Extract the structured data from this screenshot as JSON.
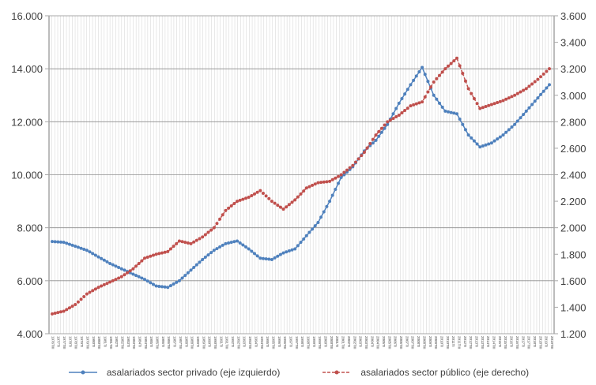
{
  "chart_data": {
    "type": "line",
    "title": "",
    "xlabel": "",
    "ylabel": "",
    "x_label_note": "Quarterly tick labels (rotated, illegible at this resolution); annual samples shown",
    "x": [
      1976,
      1977,
      1978,
      1979,
      1980,
      1981,
      1982,
      1983,
      1984,
      1985,
      1986,
      1987,
      1988,
      1989,
      1990,
      1991,
      1992,
      1993,
      1994,
      1995,
      1996,
      1997,
      1998,
      1999,
      2000,
      2001,
      2002,
      2003,
      2004,
      2005,
      2006,
      2007,
      2008,
      2009,
      2010,
      2011,
      2012,
      2013,
      2014,
      2015,
      2016,
      2017,
      2018,
      2019
    ],
    "left_axis": {
      "ylim": [
        4000,
        16000
      ],
      "ticks": [
        "4.000",
        "6.000",
        "8.000",
        "10.000",
        "12.000",
        "14.000",
        "16.000"
      ]
    },
    "right_axis": {
      "ylim": [
        1200,
        3600
      ],
      "ticks": [
        "1.200",
        "1.400",
        "1.600",
        "1.800",
        "2.000",
        "2.200",
        "2.400",
        "2.600",
        "2.800",
        "3.000",
        "3.200",
        "3.400",
        "3.600"
      ]
    },
    "series": [
      {
        "name": "asalariados sector privado (eje izquierdo)",
        "axis": "left",
        "color": "#4f81bd",
        "values": [
          7480,
          7450,
          7300,
          7150,
          6900,
          6650,
          6450,
          6250,
          6050,
          5800,
          5750,
          6000,
          6400,
          6800,
          7150,
          7400,
          7500,
          7200,
          6850,
          6800,
          7050,
          7200,
          7700,
          8200,
          9000,
          9900,
          10300,
          10900,
          11300,
          11900,
          12700,
          13400,
          14050,
          13000,
          12400,
          12300,
          11500,
          11050,
          11200,
          11500,
          11900,
          12400,
          12900,
          13400
        ]
      },
      {
        "name": "asalariados sector público (eje derecho)",
        "axis": "right",
        "color": "#c0504d",
        "values": [
          1350,
          1370,
          1420,
          1500,
          1550,
          1590,
          1630,
          1690,
          1770,
          1800,
          1820,
          1900,
          1880,
          1930,
          2000,
          2130,
          2200,
          2230,
          2280,
          2200,
          2140,
          2210,
          2300,
          2340,
          2350,
          2400,
          2470,
          2570,
          2700,
          2800,
          2850,
          2920,
          2950,
          3100,
          3200,
          3280,
          3050,
          2900,
          2930,
          2960,
          3000,
          3050,
          3120,
          3200
        ]
      }
    ],
    "grid": true,
    "legend_position": "bottom"
  },
  "legend": {
    "private_label": "asalariados sector privado (eje izquierdo)",
    "public_label": "asalariados sector público (eje derecho)"
  }
}
